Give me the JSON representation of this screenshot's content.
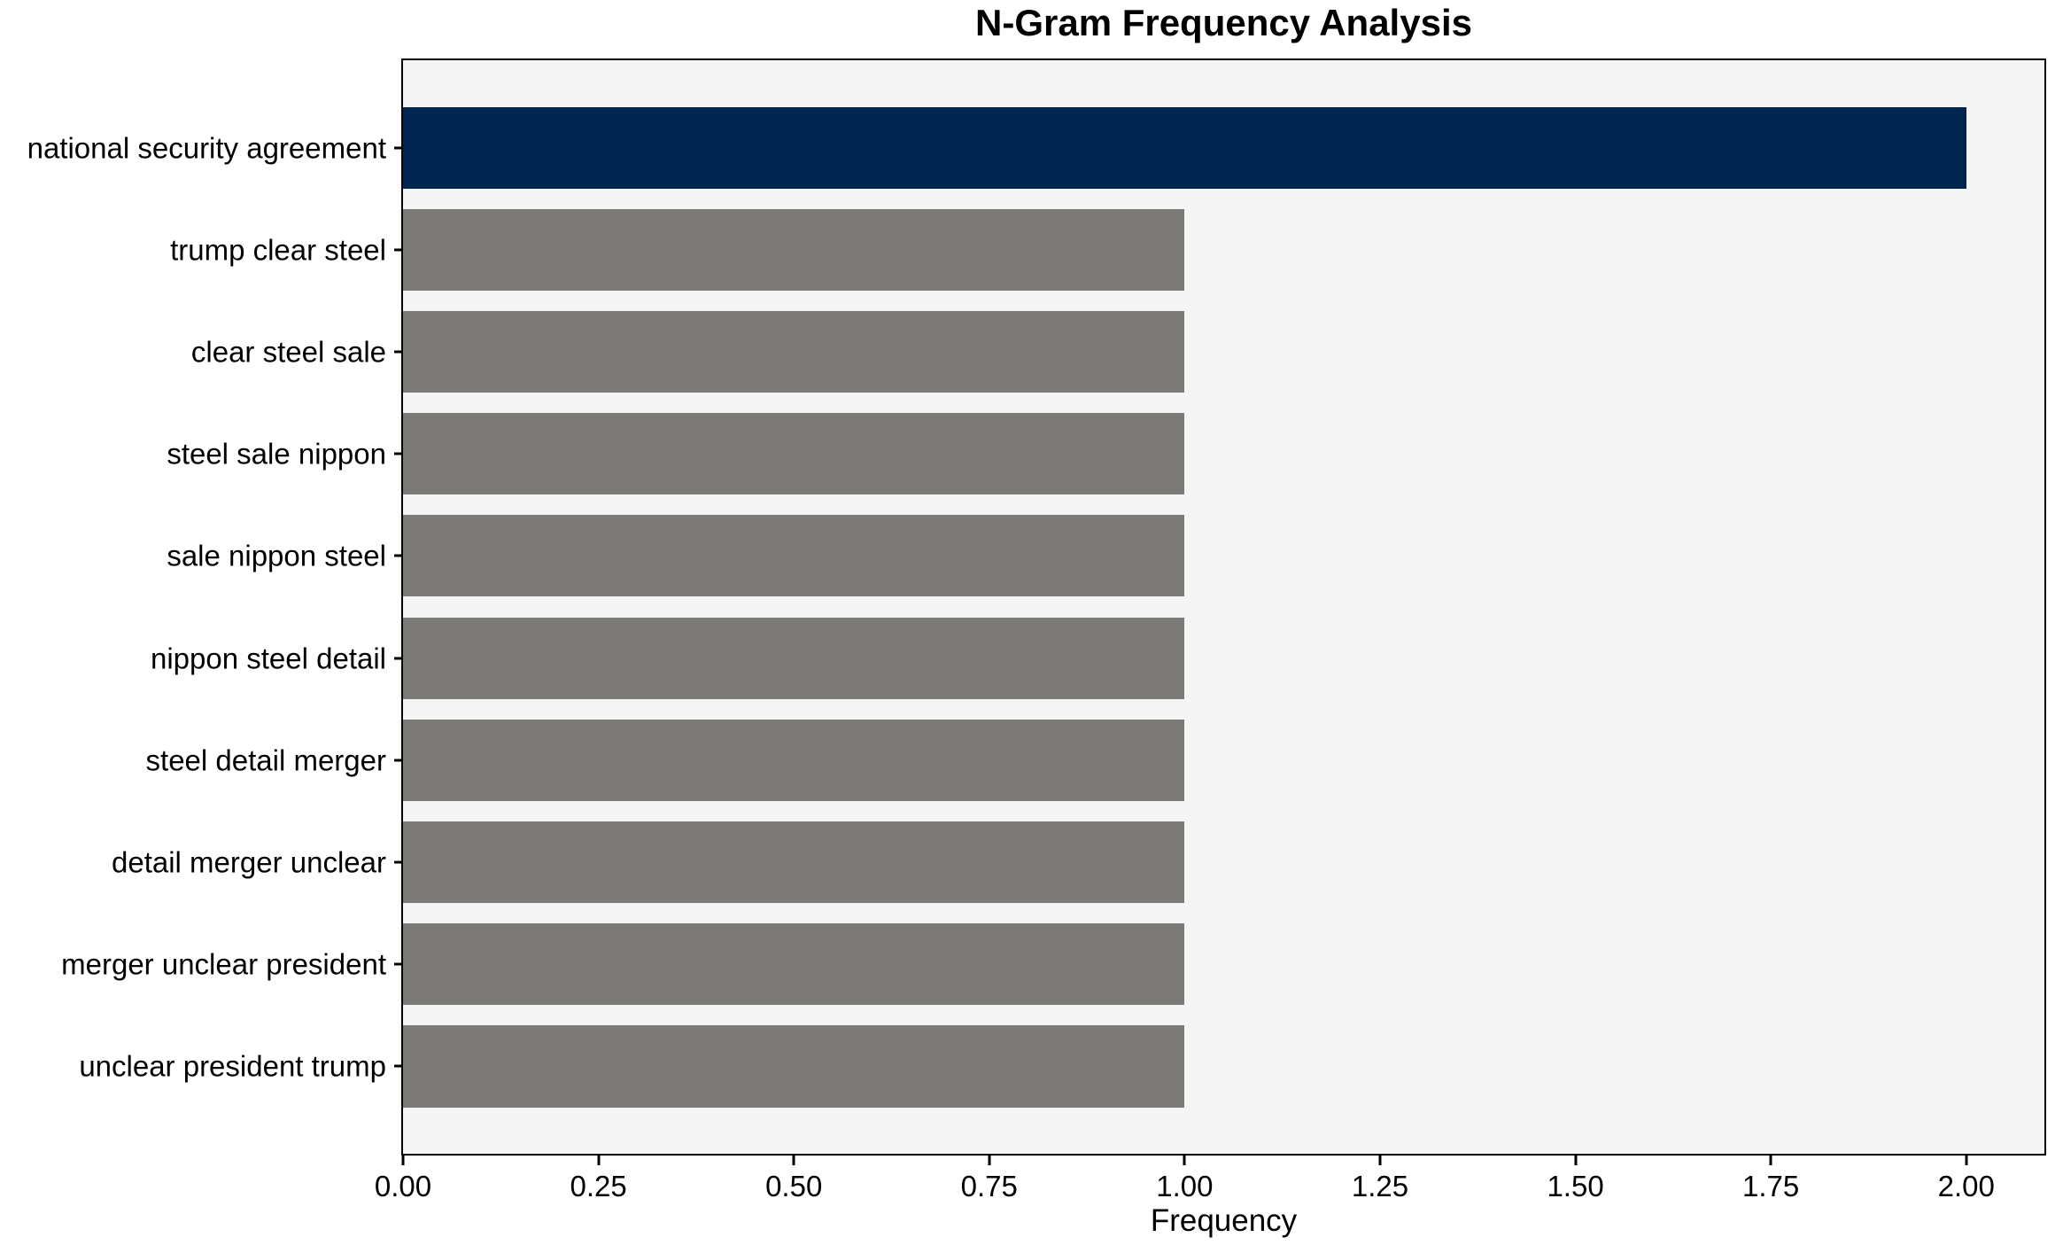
{
  "chart_data": {
    "type": "bar",
    "orientation": "horizontal",
    "title": "N-Gram Frequency Analysis",
    "xlabel": "Frequency",
    "ylabel": "",
    "categories": [
      "national security agreement",
      "trump clear steel",
      "clear steel sale",
      "steel sale nippon",
      "sale nippon steel",
      "nippon steel detail",
      "steel detail merger",
      "detail merger unclear",
      "merger unclear president",
      "unclear president trump"
    ],
    "values": [
      2,
      1,
      1,
      1,
      1,
      1,
      1,
      1,
      1,
      1
    ],
    "bar_colors": [
      "#00254e",
      "#7b7a76",
      "#7b7a76",
      "#7b7a76",
      "#7b7a76",
      "#7b7a76",
      "#7b7a76",
      "#7b7a76",
      "#7b7a76",
      "#7b7a76"
    ],
    "xlim": [
      0,
      2.1
    ],
    "xticks": {
      "values": [
        0,
        0.25,
        0.5,
        0.75,
        1.0,
        1.25,
        1.5,
        1.75,
        2.0
      ],
      "labels": [
        "0.00",
        "0.25",
        "0.50",
        "0.75",
        "1.00",
        "1.25",
        "1.50",
        "1.75",
        "2.00"
      ]
    },
    "grid": false,
    "legend": null,
    "bar_height_fraction": 0.8,
    "colors": {
      "highlight_bar": "#00254e",
      "default_bar": "#7b7a76",
      "plot_background": "#f5f5f5",
      "figure_background": "#ffffff",
      "axis_line": "#000000",
      "text": "#000000"
    }
  }
}
